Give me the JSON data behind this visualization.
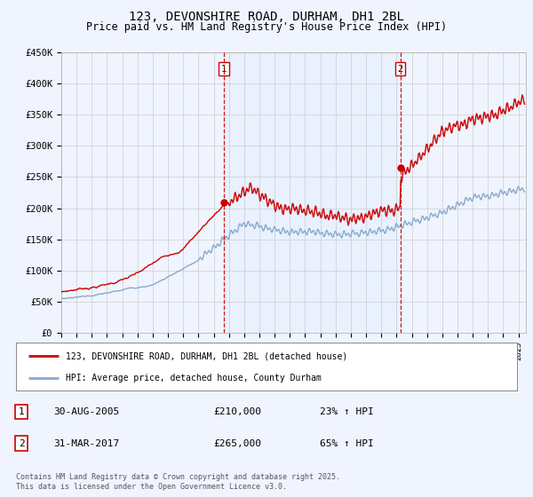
{
  "title": "123, DEVONSHIRE ROAD, DURHAM, DH1 2BL",
  "subtitle": "Price paid vs. HM Land Registry's House Price Index (HPI)",
  "ylim": [
    0,
    450000
  ],
  "yticks": [
    0,
    50000,
    100000,
    150000,
    200000,
    250000,
    300000,
    350000,
    400000,
    450000
  ],
  "ytick_labels": [
    "£0",
    "£50K",
    "£100K",
    "£150K",
    "£200K",
    "£250K",
    "£300K",
    "£350K",
    "£400K",
    "£450K"
  ],
  "xlim_start": 1995.0,
  "xlim_end": 2025.5,
  "sale1_x": 2005.664,
  "sale1_y": 210000,
  "sale1_label": "1",
  "sale1_date": "30-AUG-2005",
  "sale1_price": "£210,000",
  "sale1_hpi": "23% ↑ HPI",
  "sale2_x": 2017.247,
  "sale2_y": 265000,
  "sale2_label": "2",
  "sale2_date": "31-MAR-2017",
  "sale2_price": "£265,000",
  "sale2_hpi": "65% ↑ HPI",
  "line1_color": "#cc0000",
  "line2_color": "#88aacc",
  "vline_color": "#cc0000",
  "background_color": "#f0f4ff",
  "shade_color": "#ddeeff",
  "legend1_label": "123, DEVONSHIRE ROAD, DURHAM, DH1 2BL (detached house)",
  "legend2_label": "HPI: Average price, detached house, County Durham",
  "footnote": "Contains HM Land Registry data © Crown copyright and database right 2025.\nThis data is licensed under the Open Government Licence v3.0.",
  "title_fontsize": 10,
  "subtitle_fontsize": 8.5
}
